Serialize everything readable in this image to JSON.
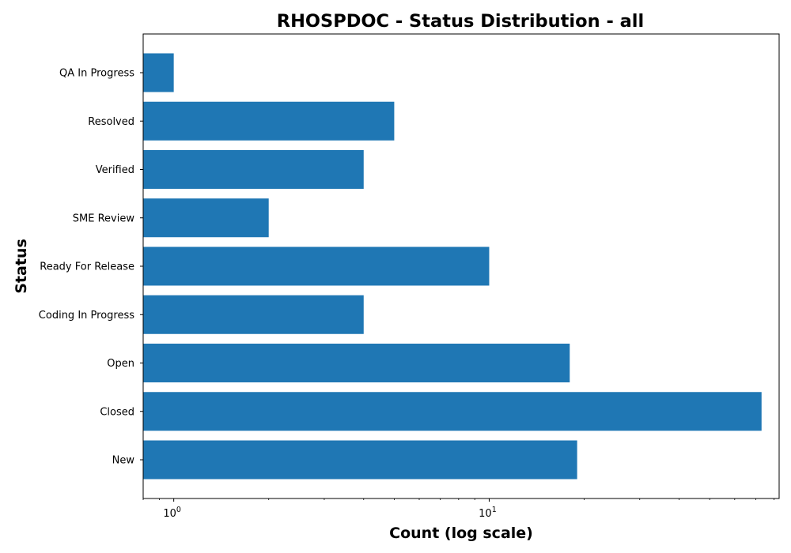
{
  "chart_data": {
    "type": "bar",
    "orientation": "horizontal",
    "title": "RHOSPDOC - Status Distribution - all",
    "xlabel": "Count (log scale)",
    "ylabel": "Status",
    "x_scale": "log",
    "xlim": [
      0.8,
      83
    ],
    "x_ticks": [
      {
        "value": 1,
        "base": "10",
        "exp": "0"
      },
      {
        "value": 10,
        "base": "10",
        "exp": "1"
      }
    ],
    "categories": [
      "New",
      "Closed",
      "Open",
      "Coding In Progress",
      "Ready For Release",
      "SME Review",
      "Verified",
      "Resolved",
      "QA In Progress"
    ],
    "values": [
      19,
      73,
      18,
      4,
      10,
      2,
      4,
      5,
      1
    ],
    "bar_color": "#1f77b4",
    "grid": false,
    "legend": "none"
  }
}
